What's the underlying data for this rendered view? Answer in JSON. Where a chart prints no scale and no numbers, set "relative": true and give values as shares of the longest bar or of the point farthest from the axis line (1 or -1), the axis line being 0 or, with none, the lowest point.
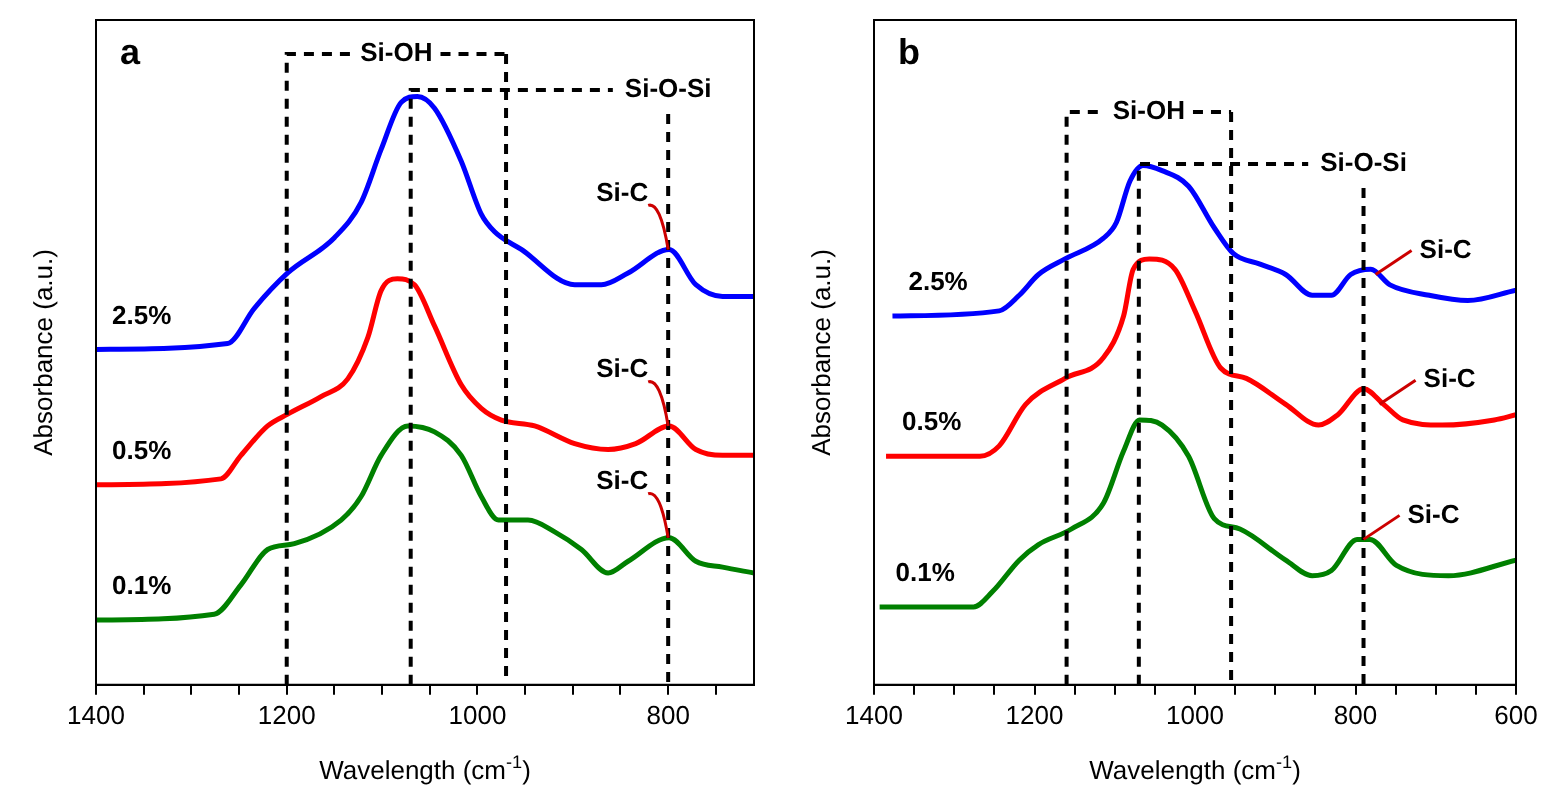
{
  "chart_data": [
    {
      "type": "line",
      "title": "a",
      "xlabel": "Wavelength (cm$^{-1}$)",
      "ylabel": "Absorbance (a.u.)",
      "relative": true,
      "legend": false,
      "grid": false,
      "marker": "none",
      "line_style": "solid",
      "xlim": [
        1400,
        710
      ],
      "xticks": [
        1400,
        {
          "value": 1350,
          "label": null
        },
        {
          "value": 1300,
          "label": null
        },
        {
          "value": 1250,
          "label": null
        },
        1200,
        {
          "value": 1150,
          "label": null
        },
        {
          "value": 1100,
          "label": null
        },
        {
          "value": 1050,
          "label": null
        },
        1000,
        {
          "value": 950,
          "label": null
        },
        {
          "value": 900,
          "label": null
        },
        {
          "value": 850,
          "label": null
        },
        800,
        {
          "value": 750,
          "label": null
        }
      ],
      "series": [
        {
          "name": "2.5%",
          "color": "#0000ff",
          "x": [
            1400,
            1262,
            1234,
            1199,
            1150,
            1122,
            1101,
            1080,
            1063,
            1045,
            1017,
            996,
            982,
            954,
            898,
            870,
            842,
            799,
            771,
            743,
            710
          ],
          "values": [
            0.57,
            0.58,
            0.64,
            0.7,
            0.76,
            0.82,
            0.91,
            0.99,
            1.0,
            0.98,
            0.89,
            0.8,
            0.77,
            0.74,
            0.68,
            0.68,
            0.7,
            0.74,
            0.68,
            0.66,
            0.66
          ]
        },
        {
          "name": "0.5%",
          "color": "#ff0000",
          "x": [
            1400,
            1269,
            1248,
            1220,
            1199,
            1164,
            1136,
            1115,
            1101,
            1084,
            1066,
            1045,
            1017,
            996,
            975,
            940,
            898,
            863,
            834,
            799,
            771,
            743,
            710
          ],
          "values": [
            0.34,
            0.35,
            0.39,
            0.44,
            0.46,
            0.49,
            0.52,
            0.59,
            0.67,
            0.69,
            0.68,
            0.61,
            0.51,
            0.47,
            0.45,
            0.44,
            0.41,
            0.4,
            0.41,
            0.44,
            0.4,
            0.39,
            0.39
          ]
        },
        {
          "name": "0.1%",
          "color": "#008000",
          "x": [
            1400,
            1276,
            1248,
            1220,
            1192,
            1143,
            1122,
            1101,
            1073,
            1045,
            1017,
            996,
            978,
            947,
            919,
            891,
            863,
            842,
            799,
            771,
            743,
            710
          ],
          "values": [
            0.11,
            0.12,
            0.17,
            0.23,
            0.24,
            0.28,
            0.32,
            0.39,
            0.44,
            0.43,
            0.39,
            0.32,
            0.28,
            0.28,
            0.26,
            0.23,
            0.19,
            0.21,
            0.25,
            0.21,
            0.2,
            0.19
          ]
        }
      ],
      "ref_lines": [
        {
          "axis": "x",
          "value": 1200,
          "label": "Si-OH",
          "line_style": "dashed",
          "color": "#000000"
        },
        {
          "axis": "x",
          "value": 970,
          "line_style": "dashed",
          "color": "#000000"
        },
        {
          "axis": "x",
          "value": 1070,
          "label": "Si-O-Si",
          "line_style": "dashed",
          "color": "#000000"
        },
        {
          "axis": "x",
          "value": 800,
          "line_style": "dashed",
          "color": "#000000"
        }
      ],
      "annotations": [
        {
          "text": "Si-C",
          "x": 800,
          "y": 0.74
        },
        {
          "text": "Si-C",
          "x": 800,
          "y": 0.44
        },
        {
          "text": "Si-C",
          "x": 800,
          "y": 0.25
        }
      ]
    },
    {
      "type": "line",
      "title": "b",
      "xlabel": "Wavelength (cm$^{-1}$)",
      "ylabel": "Absorbance (a.u.)",
      "relative": true,
      "legend": false,
      "grid": false,
      "marker": "none",
      "line_style": "solid",
      "xlim": [
        1400,
        600
      ],
      "xticks": [
        1400,
        {
          "value": 1350,
          "label": null
        },
        {
          "value": 1300,
          "label": null
        },
        {
          "value": 1250,
          "label": null
        },
        1200,
        {
          "value": 1150,
          "label": null
        },
        {
          "value": 1100,
          "label": null
        },
        {
          "value": 1050,
          "label": null
        },
        1000,
        {
          "value": 950,
          "label": null
        },
        {
          "value": 900,
          "label": null
        },
        {
          "value": 850,
          "label": null
        },
        800,
        {
          "value": 750,
          "label": null
        },
        {
          "value": 700,
          "label": null
        },
        {
          "value": 650,
          "label": null
        },
        600
      ],
      "series": [
        {
          "name": "2.5%",
          "color": "#0000ff",
          "x": [
            1377,
            1244,
            1219,
            1195,
            1162,
            1114,
            1098,
            1081,
            1065,
            1041,
            1008,
            976,
            952,
            919,
            887,
            854,
            830,
            806,
            781,
            757,
            708,
            660,
            600
          ],
          "values": [
            0.71,
            0.72,
            0.75,
            0.79,
            0.82,
            0.86,
            0.89,
            0.97,
            1.0,
            0.99,
            0.96,
            0.88,
            0.83,
            0.81,
            0.79,
            0.75,
            0.75,
            0.79,
            0.8,
            0.77,
            0.75,
            0.74,
            0.76
          ]
        },
        {
          "name": "0.5%",
          "color": "#ff0000",
          "x": [
            1385,
            1268,
            1244,
            1211,
            1162,
            1114,
            1089,
            1077,
            1057,
            1025,
            1000,
            968,
            936,
            887,
            846,
            822,
            790,
            765,
            741,
            692,
            627,
            600
          ],
          "values": [
            0.44,
            0.44,
            0.46,
            0.54,
            0.59,
            0.63,
            0.71,
            0.8,
            0.82,
            0.8,
            0.72,
            0.61,
            0.59,
            0.54,
            0.5,
            0.52,
            0.57,
            0.54,
            0.51,
            0.5,
            0.51,
            0.52
          ]
        },
        {
          "name": "0.1%",
          "color": "#008000",
          "x": [
            1393,
            1276,
            1252,
            1219,
            1195,
            1154,
            1114,
            1089,
            1069,
            1041,
            1008,
            976,
            944,
            887,
            854,
            830,
            798,
            782,
            749,
            684,
            600
          ],
          "values": [
            0.15,
            0.15,
            0.18,
            0.24,
            0.27,
            0.3,
            0.35,
            0.45,
            0.51,
            0.5,
            0.44,
            0.32,
            0.3,
            0.24,
            0.21,
            0.22,
            0.28,
            0.28,
            0.23,
            0.21,
            0.24
          ]
        }
      ],
      "ref_lines": [
        {
          "axis": "x",
          "value": 1160,
          "label": "Si-OH",
          "line_style": "dashed",
          "color": "#000000"
        },
        {
          "axis": "x",
          "value": 955,
          "line_style": "dashed",
          "color": "#000000"
        },
        {
          "axis": "x",
          "value": 1070,
          "label": "Si-O-Si",
          "line_style": "dashed",
          "color": "#000000"
        },
        {
          "axis": "x",
          "value": 790,
          "line_style": "dashed",
          "color": "#000000"
        }
      ],
      "annotations": [
        {
          "text": "Si-C",
          "x": 775,
          "y": 0.79
        },
        {
          "text": "Si-C",
          "x": 770,
          "y": 0.54
        },
        {
          "text": "Si-C",
          "x": 790,
          "y": 0.28
        }
      ]
    }
  ]
}
